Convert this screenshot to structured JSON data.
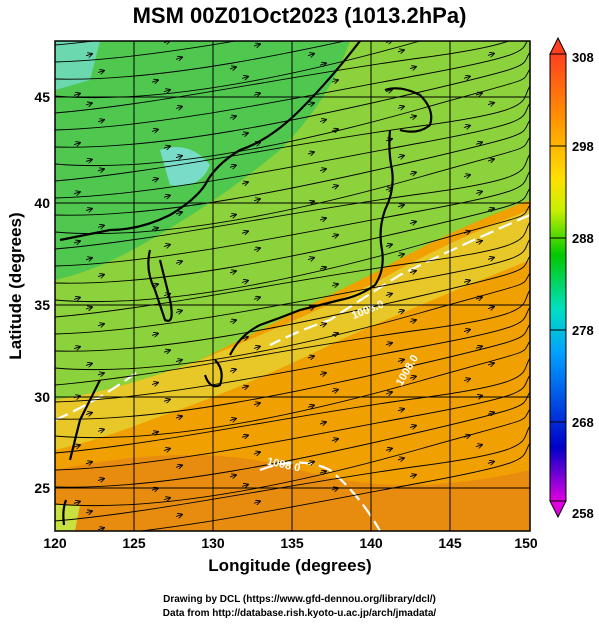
{
  "title": "MSM 00Z01Oct2023 (1013.2hPa)",
  "map": {
    "xlabel": "Longitude (degrees)",
    "ylabel": "Latitude  (degrees)",
    "x_ticks": [
      "120",
      "125",
      "130",
      "135",
      "140",
      "145",
      "150"
    ],
    "y_ticks": [
      "25",
      "30",
      "35",
      "40",
      "45"
    ],
    "lon_range": [
      120,
      150
    ],
    "lat_range": [
      22.4,
      47.6
    ],
    "contour_labels": [
      "1008.0",
      "1008.0",
      "1008.0"
    ]
  },
  "colorbar": {
    "ticks": [
      "308",
      "298",
      "288",
      "278",
      "268",
      "258"
    ],
    "range": [
      258,
      308
    ],
    "colors": [
      "#e000e0",
      "#0000c8",
      "#00a0ff",
      "#00e0c0",
      "#00c800",
      "#c8f000",
      "#ffe000",
      "#ff9600",
      "#ff4020"
    ]
  },
  "credits": [
    "Drawing by DCL (https://www.gfd-dennou.org/library/dcl/)",
    "Data from http://database.rish.kyoto-u.ac.jp/arch/jmadata/"
  ]
}
